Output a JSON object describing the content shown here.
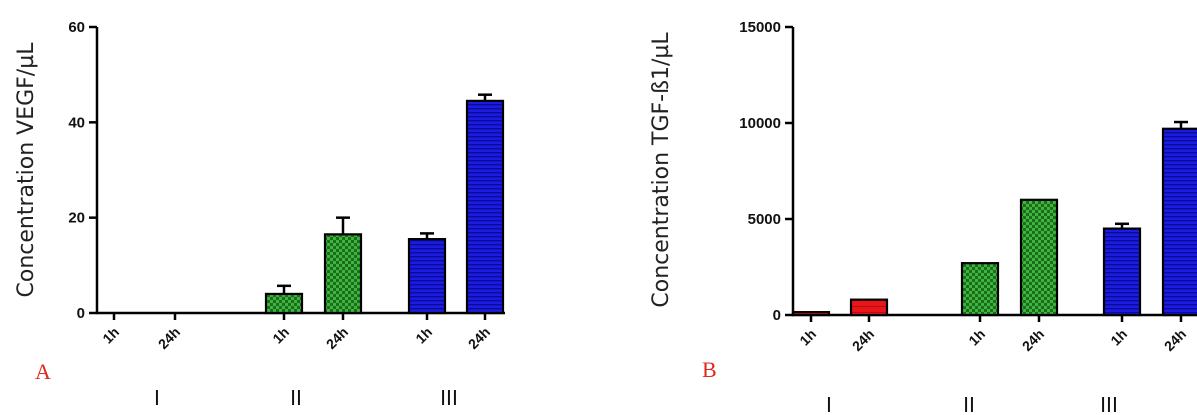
{
  "colors": {
    "group_I": "#e8161a",
    "group_II": "#1b8a1b",
    "group_III": "#1c1ce0",
    "panel_label": "#e0281e"
  },
  "chart_data": [
    {
      "type": "bar",
      "panel_label": "A",
      "ylabel": "Concentration VEGF/µL",
      "ylim": [
        0,
        60
      ],
      "yticks": [
        "0",
        "20",
        "40",
        "60"
      ],
      "categories": [
        "1h",
        "24h",
        "1h",
        "24h",
        "1h",
        "24h"
      ],
      "groups": [
        "I",
        "II",
        "III"
      ],
      "values": [
        0,
        0,
        4,
        16.5,
        15.5,
        44.5
      ],
      "errors": [
        0,
        0,
        1.7,
        3.5,
        1.2,
        1.3
      ],
      "bar_groups": [
        0,
        0,
        1,
        1,
        2,
        2
      ]
    },
    {
      "type": "bar",
      "panel_label": "B",
      "ylabel": "Concentration TGF-ß1/µL",
      "ylim": [
        0,
        15000
      ],
      "yticks": [
        "0",
        "5000",
        "10000",
        "15000"
      ],
      "categories": [
        "1h",
        "24h",
        "1h",
        "24h",
        "1h",
        "24h"
      ],
      "groups": [
        "I",
        "II",
        "III"
      ],
      "values": [
        150,
        800,
        2700,
        6000,
        4500,
        9700
      ],
      "errors": [
        0,
        0,
        0,
        0,
        250,
        350
      ],
      "bar_groups": [
        0,
        0,
        1,
        1,
        2,
        2
      ]
    }
  ]
}
